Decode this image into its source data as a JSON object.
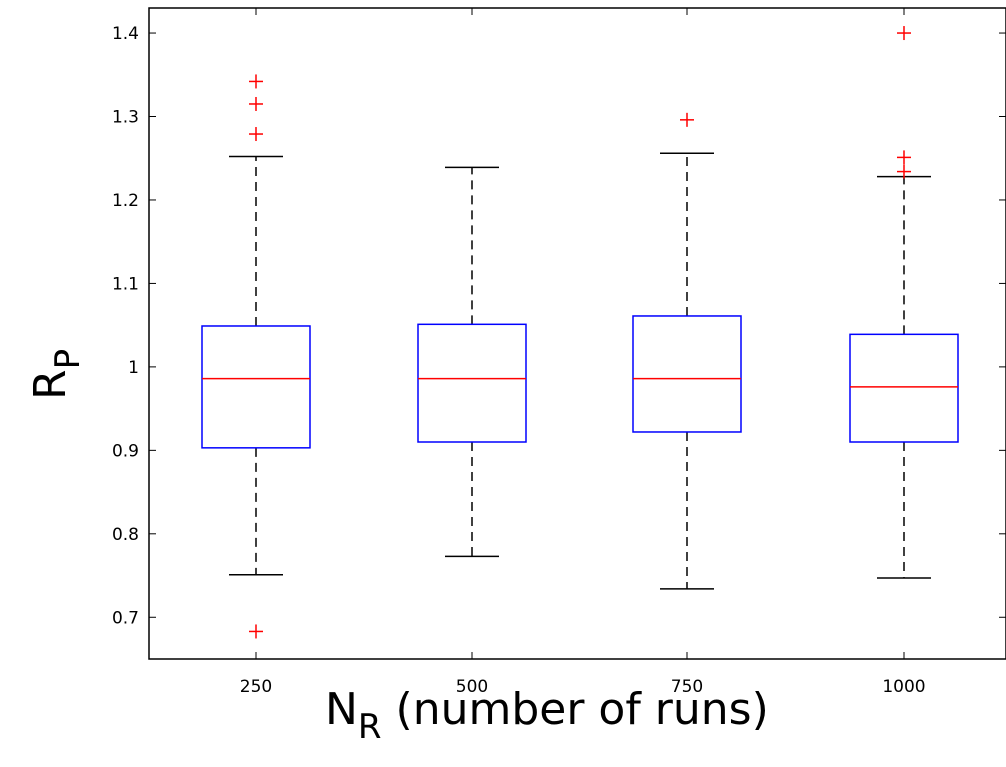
{
  "chart_data": {
    "type": "box",
    "xlabel": "N",
    "xlabel_sub": "R",
    "xlabel_rest": " (number of runs)",
    "ylabel": "R",
    "ylabel_sub": "P",
    "ylim": [
      0.65,
      1.43
    ],
    "yticks": [
      0.7,
      0.8,
      0.9,
      1,
      1.1,
      1.2,
      1.3,
      1.4
    ],
    "ytick_labels": [
      "0.7",
      "0.8",
      "0.9",
      "1",
      "1.1",
      "1.2",
      "1.3",
      "1.4"
    ],
    "categories": [
      "250",
      "500",
      "750",
      "1000"
    ],
    "boxes": [
      {
        "category": "250",
        "whisker_low": 0.751,
        "q1": 0.903,
        "median": 0.986,
        "q3": 1.049,
        "whisker_high": 1.252,
        "outliers": [
          1.342,
          1.315,
          1.279,
          0.683
        ]
      },
      {
        "category": "500",
        "whisker_low": 0.773,
        "q1": 0.91,
        "median": 0.986,
        "q3": 1.051,
        "whisker_high": 1.239,
        "outliers": []
      },
      {
        "category": "750",
        "whisker_low": 0.734,
        "q1": 0.922,
        "median": 0.986,
        "q3": 1.061,
        "whisker_high": 1.256,
        "outliers": [
          1.296
        ]
      },
      {
        "category": "1000",
        "whisker_low": 0.747,
        "q1": 0.91,
        "median": 0.976,
        "q3": 1.039,
        "whisker_high": 1.228,
        "outliers": [
          1.4,
          1.251,
          1.234
        ]
      }
    ],
    "colors": {
      "box": "#0000ff",
      "median": "#ff0000",
      "outlier": "#ff0000",
      "whisker": "#000000"
    },
    "grid": false,
    "legend": "none"
  }
}
